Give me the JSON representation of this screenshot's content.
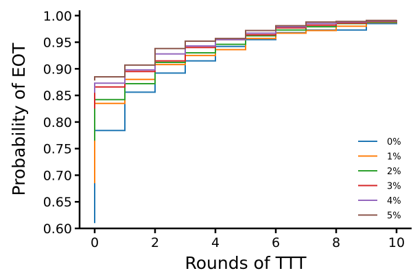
{
  "chart_data": {
    "type": "line",
    "step": true,
    "xlabel": "Rounds of TTT",
    "ylabel": "Probability of EOT",
    "xlim": [
      -0.5,
      10.5
    ],
    "ylim": [
      0.6,
      1.01
    ],
    "xticks": [
      0,
      2,
      4,
      6,
      8,
      10
    ],
    "yticks": [
      0.6,
      0.65,
      0.7,
      0.75,
      0.8,
      0.85,
      0.9,
      0.95,
      1.0
    ],
    "ytick_labels": [
      "0.60",
      "0.65",
      "0.70",
      "0.75",
      "0.80",
      "0.85",
      "0.90",
      "0.95",
      "1.00"
    ],
    "grid": false,
    "legend_position": "lower-right",
    "x": [
      0,
      1,
      2,
      3,
      4,
      5,
      6,
      7,
      8,
      9,
      10
    ],
    "series": [
      {
        "name": "0%",
        "color": "#1f77b4",
        "start": 0.61,
        "values": [
          0.784,
          0.856,
          0.892,
          0.915,
          0.942,
          0.955,
          0.968,
          0.973,
          0.973,
          0.985,
          0.987
        ]
      },
      {
        "name": "1%",
        "color": "#ff7f0e",
        "start": 0.685,
        "values": [
          0.835,
          0.88,
          0.908,
          0.925,
          0.936,
          0.957,
          0.967,
          0.972,
          0.98,
          0.987,
          0.988
        ]
      },
      {
        "name": "2%",
        "color": "#2ca02c",
        "start": 0.765,
        "values": [
          0.842,
          0.872,
          0.912,
          0.93,
          0.946,
          0.962,
          0.973,
          0.979,
          0.985,
          0.988,
          0.989
        ]
      },
      {
        "name": "3%",
        "color": "#d62728",
        "start": 0.825,
        "values": [
          0.866,
          0.895,
          0.915,
          0.94,
          0.955,
          0.964,
          0.977,
          0.982,
          0.986,
          0.989,
          0.99
        ]
      },
      {
        "name": "4%",
        "color": "#9467bd",
        "start": 0.855,
        "values": [
          0.873,
          0.898,
          0.928,
          0.943,
          0.955,
          0.967,
          0.979,
          0.985,
          0.988,
          0.99,
          0.991
        ]
      },
      {
        "name": "5%",
        "color": "#8c564b",
        "start": 0.878,
        "values": [
          0.885,
          0.907,
          0.938,
          0.952,
          0.957,
          0.972,
          0.981,
          0.988,
          0.989,
          0.991,
          0.992
        ]
      }
    ]
  }
}
